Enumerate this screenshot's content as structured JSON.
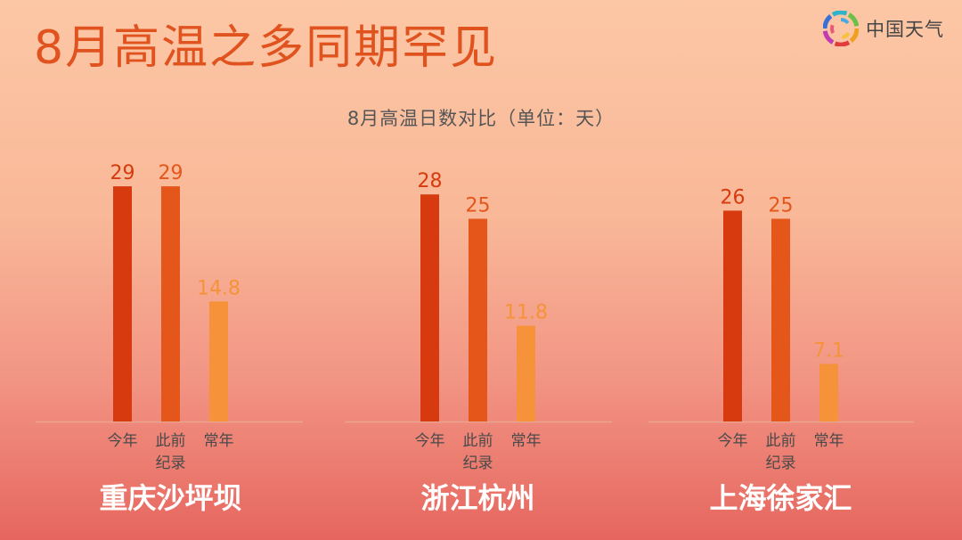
{
  "header": {
    "title": "8月高温之多同期罕见",
    "logo_text": "中国天气",
    "logo_icon": "pinwheel-logo-icon"
  },
  "colors": {
    "this_year": "#d63a0e",
    "previous_record": "#e4561a",
    "normal": "#f5923a",
    "title": "#e0531f"
  },
  "chart_data": {
    "type": "bar",
    "title": "8月高温日数对比（单位：天）",
    "unit": "天",
    "ylim": [
      0,
      30
    ],
    "grid": false,
    "series_order": [
      "今年",
      "此前纪录",
      "常年"
    ],
    "groups": [
      {
        "city": "重庆沙坪坝",
        "bars": [
          {
            "label": "今年",
            "value": 29,
            "display": "29"
          },
          {
            "label": "此前纪录",
            "value": 29,
            "display": "29"
          },
          {
            "label": "常年",
            "value": 14.8,
            "display": "14.8"
          }
        ]
      },
      {
        "city": "浙江杭州",
        "bars": [
          {
            "label": "今年",
            "value": 28,
            "display": "28"
          },
          {
            "label": "此前纪录",
            "value": 25,
            "display": "25"
          },
          {
            "label": "常年",
            "value": 11.8,
            "display": "11.8"
          }
        ]
      },
      {
        "city": "上海徐家汇",
        "bars": [
          {
            "label": "今年",
            "value": 26,
            "display": "26"
          },
          {
            "label": "此前纪录",
            "value": 25,
            "display": "25"
          },
          {
            "label": "常年",
            "value": 7.1,
            "display": "7.1"
          }
        ]
      }
    ]
  }
}
